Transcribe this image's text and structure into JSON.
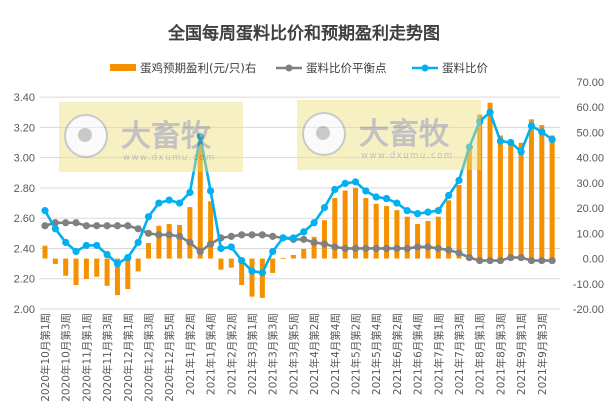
{
  "chart_data": {
    "type": "bar+line",
    "title": "全国每周蛋料比价和预期盈利走势图",
    "x_tick_labels": [
      "2020年10月第1周",
      "2020年10月第3周",
      "2020年11月第1周",
      "2020年11月第3周",
      "2020年12月第1周",
      "2020年12月第3周",
      "2020年12月第5周",
      "2021年1月第2周",
      "2021年1月第4周",
      "2021年2月第2周",
      "2021年3月第1周",
      "2021年3月第3周",
      "2021年3月第5周",
      "2021年4月第2周",
      "2021年4月第4周",
      "2021年5月第2周",
      "2021年5月第4周",
      "2021年6月第2周",
      "2021年6月第4周",
      "2021年7月第1周",
      "2021年7月第3周",
      "2021年8月第1周",
      "2021年8月第3周",
      "2021年9月第1周",
      "2021年9月第3周"
    ],
    "x_tick_every": 2,
    "left_axis": {
      "ylim": [
        2.0,
        3.5
      ],
      "ticks": [
        "3.40",
        "3.20",
        "3.00",
        "2.80",
        "2.60",
        "2.40",
        "2.20",
        "2.00"
      ]
    },
    "right_axis": {
      "ylim": [
        -20,
        70
      ],
      "ticks": [
        "70.00",
        "60.00",
        "50.00",
        "40.00",
        "30.00",
        "20.00",
        "10.00",
        "0.00",
        "-10.00",
        "-20.00"
      ]
    },
    "grid": true,
    "legend_placement": "top",
    "series": [
      {
        "name": "蛋鸡预期盈利(元/只)右",
        "type": "bar",
        "axis": "right",
        "color": "#F59100",
        "values": [
          5.1,
          -2.2,
          -6.8,
          -10.5,
          -8.1,
          -7.2,
          -10.8,
          -14.5,
          -12.1,
          -5.1,
          6.2,
          13.0,
          13.7,
          13.3,
          20.4,
          45.5,
          22.7,
          -4.4,
          -3.6,
          -10.5,
          -15.1,
          -15.6,
          -5.7,
          0.2,
          1.4,
          3.8,
          8.6,
          15.2,
          24.0,
          27.0,
          28.0,
          24.0,
          21.7,
          20.8,
          19.2,
          16.6,
          13.7,
          14.9,
          16.6,
          23.1,
          29.2,
          44.5,
          57.1,
          61.8,
          48.8,
          47.2,
          45.9,
          55.2,
          52.9,
          48.8
        ]
      },
      {
        "name": "蛋料比价平衡点",
        "type": "line",
        "axis": "left",
        "color": "#808080",
        "values": [
          2.55,
          2.57,
          2.57,
          2.57,
          2.55,
          2.55,
          2.55,
          2.55,
          2.55,
          2.53,
          2.5,
          2.49,
          2.49,
          2.48,
          2.44,
          2.38,
          2.43,
          2.47,
          2.48,
          2.49,
          2.49,
          2.49,
          2.48,
          2.47,
          2.46,
          2.46,
          2.44,
          2.43,
          2.41,
          2.4,
          2.4,
          2.4,
          2.4,
          2.4,
          2.4,
          2.4,
          2.41,
          2.41,
          2.4,
          2.39,
          2.37,
          2.34,
          2.32,
          2.32,
          2.32,
          2.34,
          2.34,
          2.32,
          2.32,
          2.32
        ]
      },
      {
        "name": "蛋料比价",
        "type": "line",
        "axis": "left",
        "color": "#00B0F0",
        "values": [
          2.65,
          2.53,
          2.44,
          2.38,
          2.42,
          2.42,
          2.36,
          2.3,
          2.34,
          2.44,
          2.61,
          2.7,
          2.72,
          2.7,
          2.77,
          3.14,
          2.78,
          2.4,
          2.41,
          2.32,
          2.25,
          2.24,
          2.38,
          2.47,
          2.47,
          2.51,
          2.57,
          2.67,
          2.79,
          2.83,
          2.84,
          2.78,
          2.74,
          2.73,
          2.7,
          2.65,
          2.63,
          2.64,
          2.65,
          2.75,
          2.85,
          3.07,
          3.24,
          3.3,
          3.11,
          3.1,
          3.04,
          3.21,
          3.17,
          3.12
        ]
      }
    ]
  },
  "watermark": {
    "brand": "大畜牧",
    "url": "www.dxumu.com"
  }
}
